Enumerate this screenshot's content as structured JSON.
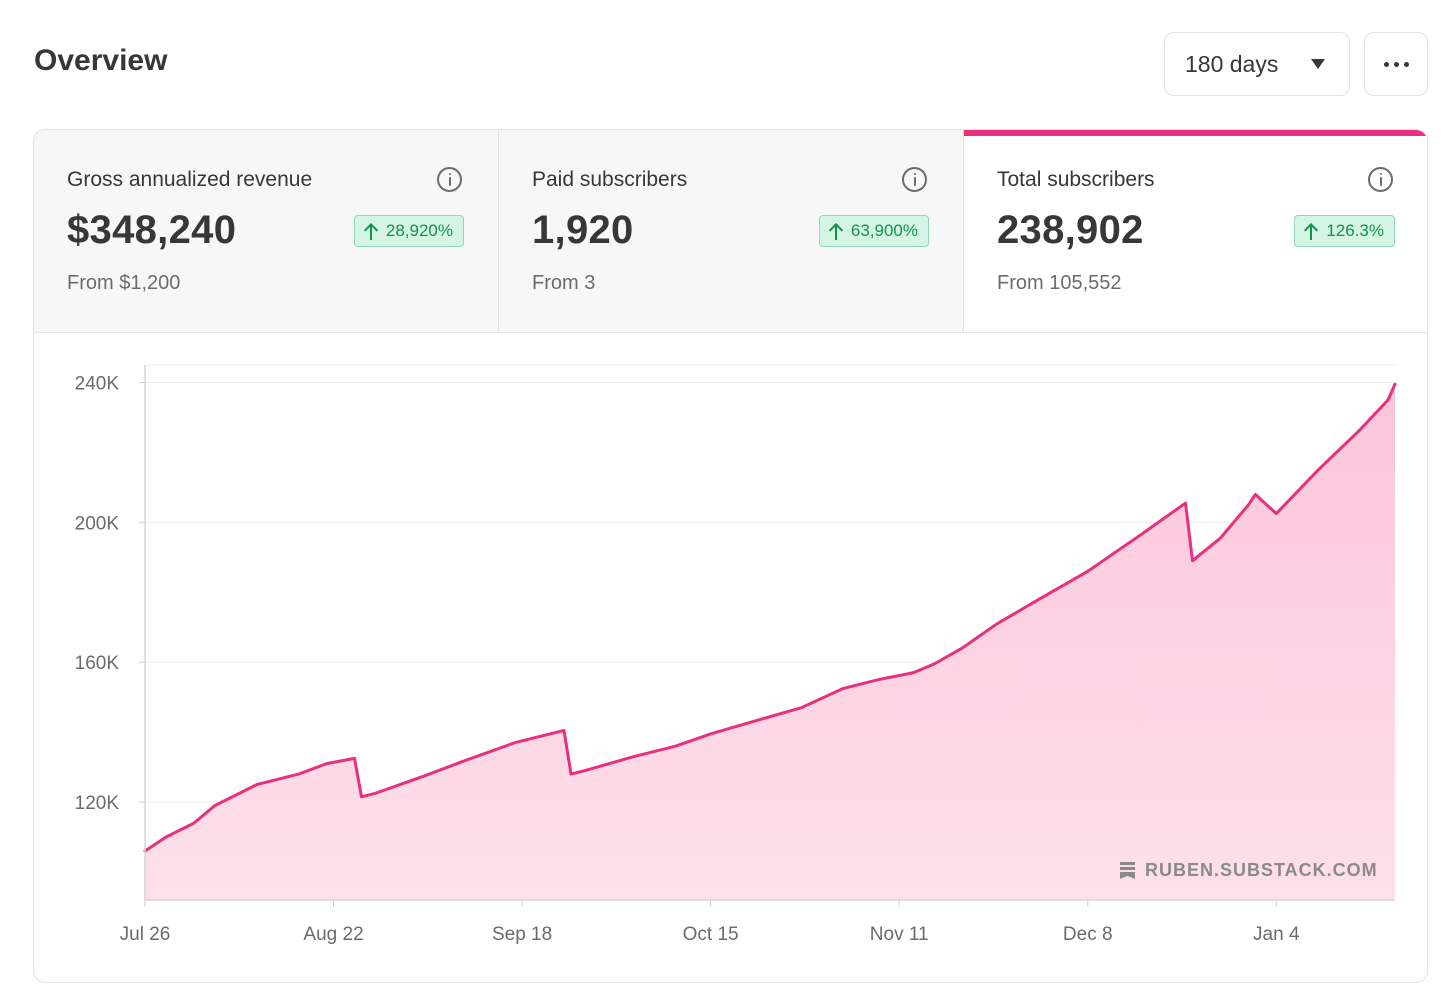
{
  "header": {
    "title": "Overview",
    "range_label": "180 days",
    "more_icon": "more-horizontal-icon"
  },
  "stats": [
    {
      "label": "Gross annualized revenue",
      "value": "$348,240",
      "change": "28,920%",
      "from": "From $1,200",
      "active": false
    },
    {
      "label": "Paid subscribers",
      "value": "1,920",
      "change": "63,900%",
      "from": "From 3",
      "active": false
    },
    {
      "label": "Total subscribers",
      "value": "238,902",
      "change": "126.3%",
      "from": "From 105,552",
      "active": true
    }
  ],
  "colors": {
    "accent": "#ea2f7e",
    "fill": "#fdd3e3",
    "badge_bg": "#d5f5e4",
    "badge_text": "#11924f"
  },
  "watermark": "RUBEN.SUBSTACK.COM",
  "chart_data": {
    "type": "area",
    "ylim": [
      92000,
      245000
    ],
    "y_ticks": [
      120000,
      160000,
      200000,
      240000
    ],
    "y_tick_labels": [
      "120K",
      "160K",
      "200K",
      "240K"
    ],
    "x_ticks": [
      0,
      27,
      54,
      81,
      108,
      135,
      162
    ],
    "x_tick_labels": [
      "Jul 26",
      "Aug 22",
      "Sep 18",
      "Oct 15",
      "Nov 11",
      "Dec 8",
      "Jan 4"
    ],
    "grid": true,
    "series": [
      {
        "x": [
          0,
          3,
          7,
          10,
          16,
          22,
          26,
          30,
          31,
          33,
          40,
          46,
          53,
          60,
          61,
          63,
          70,
          76,
          81,
          87,
          94,
          100,
          105,
          110,
          113,
          117,
          122,
          128,
          135,
          143,
          149,
          150,
          154,
          158,
          159,
          162,
          168,
          174,
          178,
          179
        ],
        "y": [
          106000,
          110000,
          114000,
          119000,
          125000,
          128000,
          131000,
          132500,
          121500,
          122500,
          127500,
          132000,
          137000,
          140500,
          128000,
          129000,
          133000,
          136000,
          139500,
          143000,
          147000,
          152500,
          155000,
          157000,
          159500,
          164000,
          171000,
          178000,
          186000,
          197000,
          205500,
          189000,
          195500,
          205000,
          208000,
          202500,
          215000,
          226500,
          235000,
          239500
        ]
      }
    ]
  }
}
